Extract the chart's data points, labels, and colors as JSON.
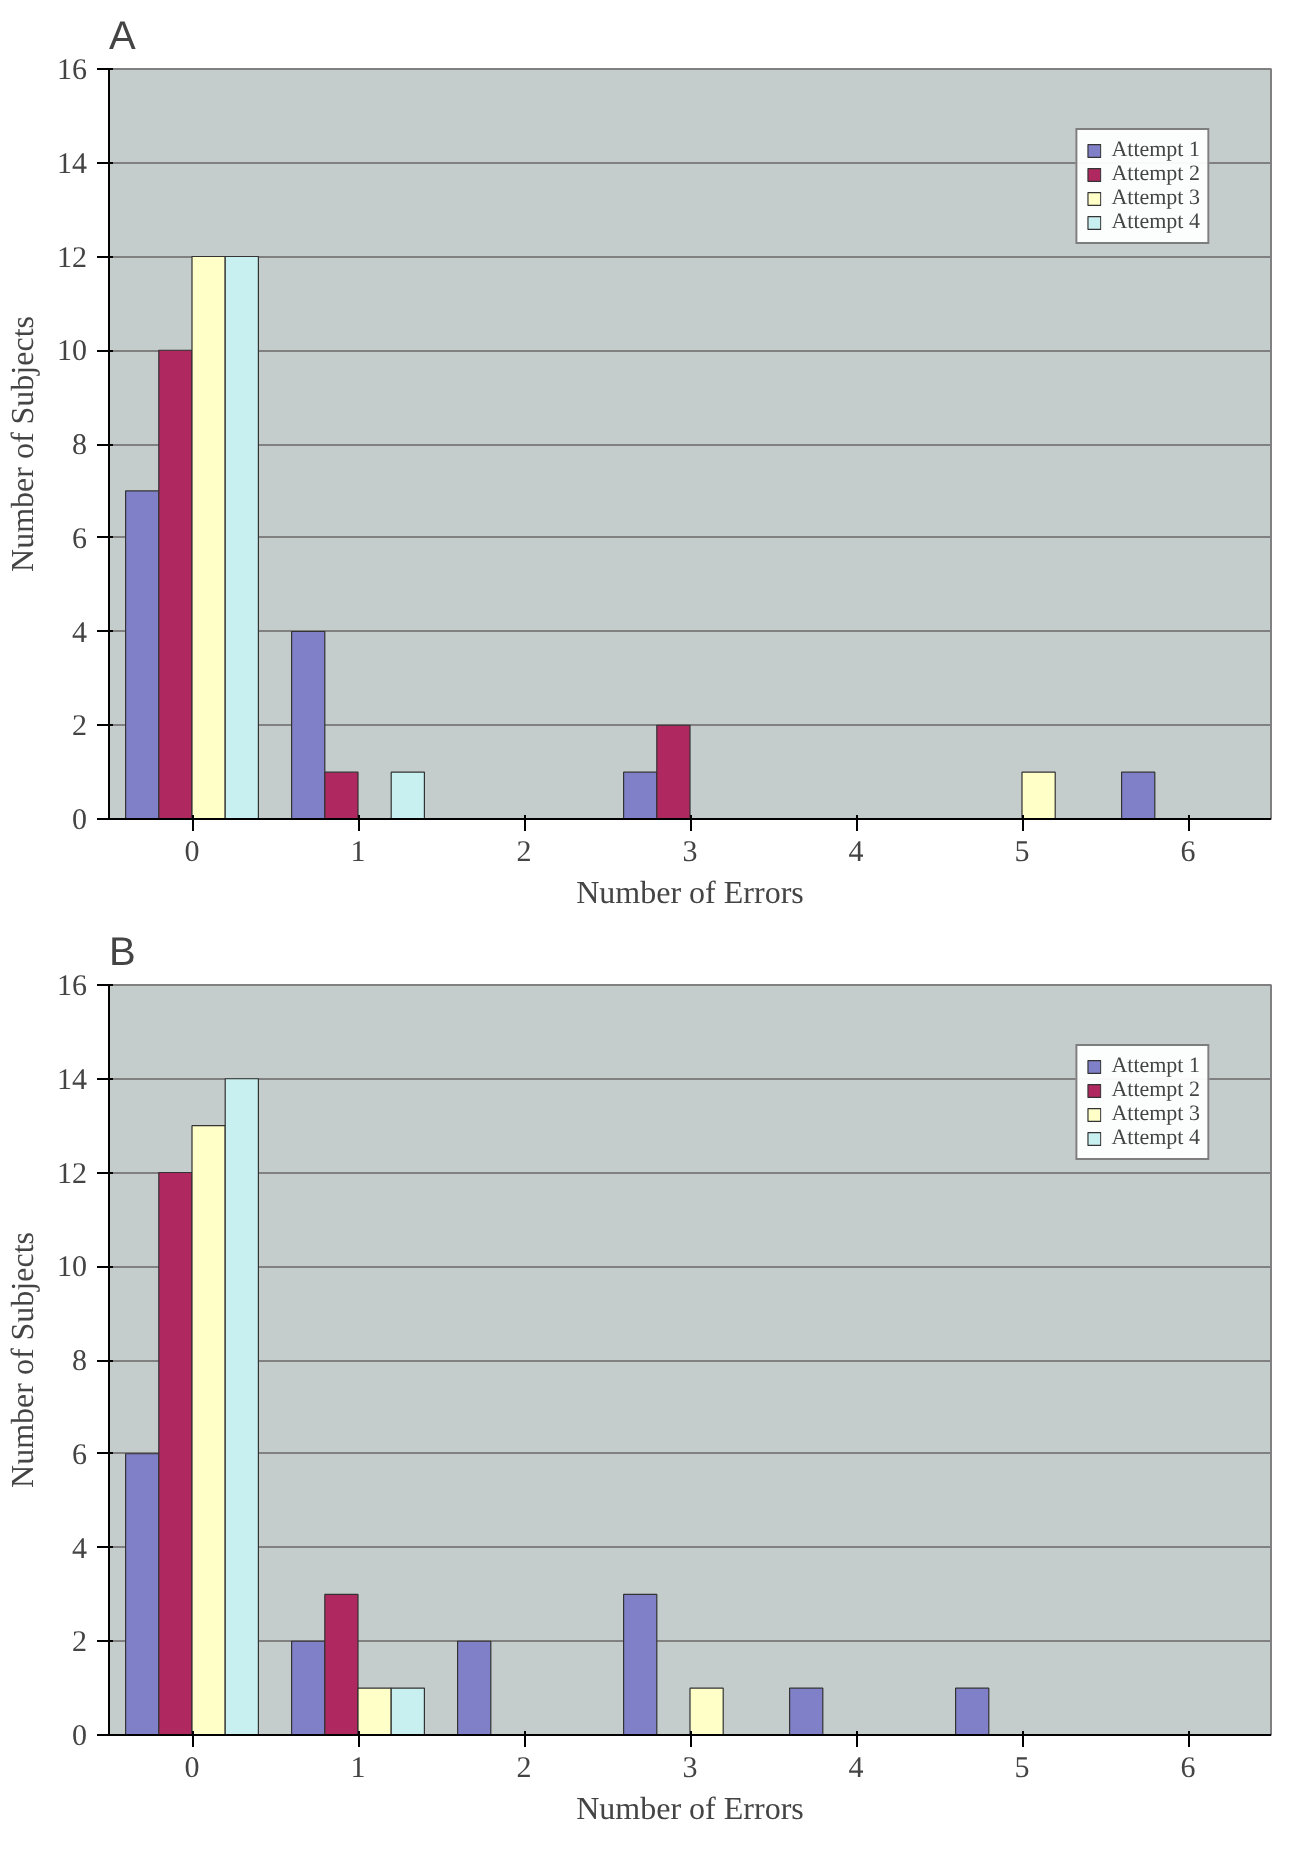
{
  "chart_data": [
    {
      "type": "bar",
      "title": "A",
      "xlabel": "Number of Errors",
      "ylabel": "Number of Subjects",
      "categories": [
        "0",
        "1",
        "2",
        "3",
        "4",
        "5",
        "6"
      ],
      "ylim": [
        0,
        16
      ],
      "yticks": [
        0,
        2,
        4,
        6,
        8,
        10,
        12,
        14,
        16
      ],
      "grid": "y",
      "legend": "top right",
      "series": [
        {
          "name": "Attempt 1",
          "color": "#8080c8",
          "values": [
            7,
            4,
            0,
            1,
            0,
            0,
            1
          ]
        },
        {
          "name": "Attempt 2",
          "color": "#b02860",
          "values": [
            10,
            1,
            0,
            2,
            0,
            0,
            0
          ]
        },
        {
          "name": "Attempt 3",
          "color": "#ffffc8",
          "values": [
            12,
            0,
            0,
            0,
            0,
            1,
            0
          ]
        },
        {
          "name": "Attempt 4",
          "color": "#c8f0f0",
          "values": [
            12,
            1,
            0,
            0,
            0,
            0,
            0
          ]
        }
      ]
    },
    {
      "type": "bar",
      "title": "B",
      "xlabel": "Number of Errors",
      "ylabel": "Number of Subjects",
      "categories": [
        "0",
        "1",
        "2",
        "3",
        "4",
        "5",
        "6"
      ],
      "ylim": [
        0,
        16
      ],
      "yticks": [
        0,
        2,
        4,
        6,
        8,
        10,
        12,
        14,
        16
      ],
      "grid": "y",
      "legend": "top right",
      "series": [
        {
          "name": "Attempt 1",
          "color": "#8080c8",
          "values": [
            6,
            2,
            2,
            3,
            1,
            1,
            0
          ]
        },
        {
          "name": "Attempt 2",
          "color": "#b02860",
          "values": [
            12,
            3,
            0,
            0,
            0,
            0,
            0
          ]
        },
        {
          "name": "Attempt 3",
          "color": "#ffffc8",
          "values": [
            13,
            1,
            0,
            1,
            0,
            0,
            0
          ]
        },
        {
          "name": "Attempt 4",
          "color": "#c8f0f0",
          "values": [
            14,
            1,
            0,
            0,
            0,
            0,
            0
          ]
        }
      ]
    }
  ]
}
